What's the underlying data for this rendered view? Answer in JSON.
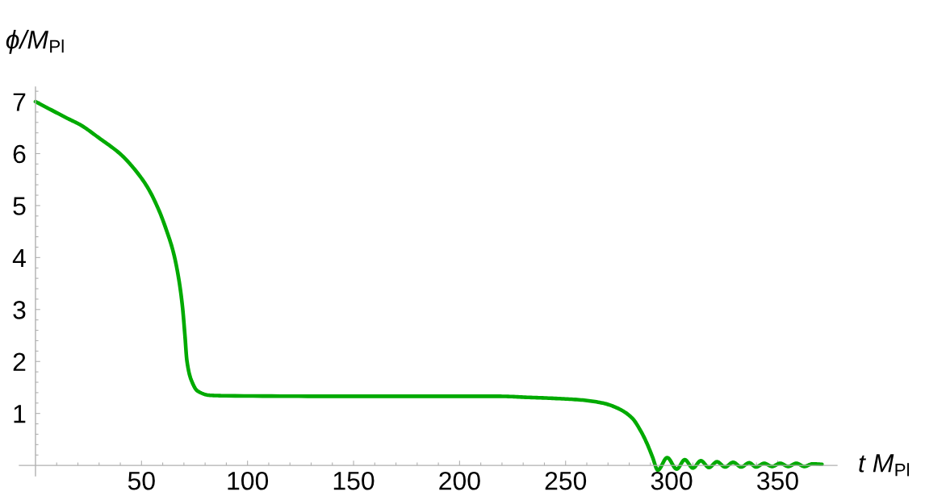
{
  "chart_data": {
    "type": "line",
    "xlabel": "t M$_{Pl}$",
    "ylabel": "ϕ/M$_{Pl}$",
    "x": [
      0,
      15,
      21.3,
      30,
      40.35,
      46.7,
      53,
      58.1,
      61.9,
      65.1,
      67.6,
      69.3,
      70.5,
      71.4,
      73.3,
      76.5,
      82.2,
      89.8,
      150,
      200,
      219.3,
      231.9,
      244.6,
      257.3,
      267.5,
      275.1,
      281.4,
      285.2,
      288.4,
      291,
      293.5,
      297.9,
      302.4,
      306.2,
      310,
      313.8,
      317.6,
      321.4,
      325.2,
      329,
      332.8,
      336.6,
      339.8,
      343.6,
      347.4,
      351.2,
      355,
      358.8,
      362.6,
      366.5,
      370.9
    ],
    "series": [
      {
        "color": "#00aa00",
        "values": [
          7.0,
          6.68,
          6.55,
          6.3,
          5.98,
          5.7,
          5.34,
          4.92,
          4.51,
          4.09,
          3.58,
          3.06,
          2.49,
          2.02,
          1.66,
          1.43,
          1.35,
          1.34,
          1.33,
          1.33,
          1.33,
          1.31,
          1.29,
          1.26,
          1.2,
          1.09,
          0.91,
          0.68,
          0.42,
          0.16,
          -0.09,
          0.15,
          -0.07,
          0.11,
          -0.05,
          0.09,
          -0.04,
          0.07,
          -0.03,
          0.06,
          -0.03,
          0.05,
          -0.03,
          0.04,
          -0.02,
          0.04,
          -0.02,
          0.04,
          -0.02,
          0.03,
          0.02
        ]
      }
    ],
    "xlim": [
      -7.6,
      378
    ],
    "ylim": [
      -0.2,
      7.28
    ],
    "xticks": [
      {
        "value": 10,
        "label": null
      },
      {
        "value": 20,
        "label": null
      },
      {
        "value": 30,
        "label": null
      },
      {
        "value": 40,
        "label": null
      },
      50,
      {
        "value": 60,
        "label": null
      },
      {
        "value": 70,
        "label": null
      },
      {
        "value": 80,
        "label": null
      },
      {
        "value": 90,
        "label": null
      },
      100,
      {
        "value": 110,
        "label": null
      },
      {
        "value": 120,
        "label": null
      },
      {
        "value": 130,
        "label": null
      },
      {
        "value": 140,
        "label": null
      },
      150,
      {
        "value": 160,
        "label": null
      },
      {
        "value": 170,
        "label": null
      },
      {
        "value": 180,
        "label": null
      },
      {
        "value": 190,
        "label": null
      },
      200,
      {
        "value": 210,
        "label": null
      },
      {
        "value": 220,
        "label": null
      },
      {
        "value": 230,
        "label": null
      },
      {
        "value": 240,
        "label": null
      },
      250,
      {
        "value": 260,
        "label": null
      },
      {
        "value": 270,
        "label": null
      },
      {
        "value": 280,
        "label": null
      },
      {
        "value": 290,
        "label": null
      },
      300,
      {
        "value": 310,
        "label": null
      },
      {
        "value": 320,
        "label": null
      },
      {
        "value": 330,
        "label": null
      },
      {
        "value": 340,
        "label": null
      },
      350,
      {
        "value": 360,
        "label": null
      },
      {
        "value": 370,
        "label": null
      }
    ],
    "yticks": [
      {
        "value": 0.2,
        "label": null
      },
      {
        "value": 0.4,
        "label": null
      },
      {
        "value": 0.6,
        "label": null
      },
      {
        "value": 0.8,
        "label": null
      },
      1,
      {
        "value": 1.2,
        "label": null
      },
      {
        "value": 1.4,
        "label": null
      },
      {
        "value": 1.6,
        "label": null
      },
      {
        "value": 1.8,
        "label": null
      },
      2,
      {
        "value": 2.2,
        "label": null
      },
      {
        "value": 2.4,
        "label": null
      },
      {
        "value": 2.6,
        "label": null
      },
      {
        "value": 2.8,
        "label": null
      },
      3,
      {
        "value": 3.2,
        "label": null
      },
      {
        "value": 3.4,
        "label": null
      },
      {
        "value": 3.6,
        "label": null
      },
      {
        "value": 3.8,
        "label": null
      },
      4,
      {
        "value": 4.2,
        "label": null
      },
      {
        "value": 4.4,
        "label": null
      },
      {
        "value": 4.6,
        "label": null
      },
      {
        "value": 4.8,
        "label": null
      },
      5,
      {
        "value": 5.2,
        "label": null
      },
      {
        "value": 5.4,
        "label": null
      },
      {
        "value": 5.6,
        "label": null
      },
      {
        "value": 5.8,
        "label": null
      },
      6,
      {
        "value": 6.2,
        "label": null
      },
      {
        "value": 6.4,
        "label": null
      },
      {
        "value": 6.6,
        "label": null
      },
      {
        "value": 6.8,
        "label": null
      },
      7,
      {
        "value": 7.2,
        "label": null
      }
    ],
    "line_style": "solid"
  }
}
